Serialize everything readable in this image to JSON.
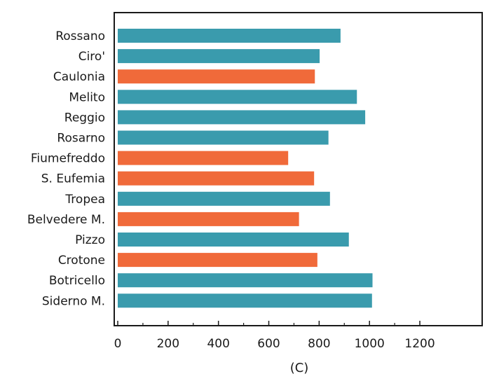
{
  "chart_data": {
    "type": "bar",
    "orientation": "horizontal",
    "categories": [
      "Rossano",
      "Ciro'",
      "Caulonia",
      "Melito",
      "Reggio",
      "Rosarno",
      "Fiumefreddo",
      "S. Eufemia",
      "Tropea",
      "Belvedere M.",
      "Pizzo",
      "Crotone",
      "Botricello",
      "Siderno M."
    ],
    "values": [
      885,
      802,
      783,
      950,
      983,
      837,
      677,
      780,
      843,
      720,
      918,
      793,
      1012,
      1010
    ],
    "bar_colors": [
      "#3a9bad",
      "#3a9bad",
      "#f06a3a",
      "#3a9bad",
      "#3a9bad",
      "#3a9bad",
      "#f06a3a",
      "#f06a3a",
      "#3a9bad",
      "#f06a3a",
      "#3a9bad",
      "#f06a3a",
      "#3a9bad",
      "#3a9bad"
    ],
    "xlim": [
      0,
      1200
    ],
    "xticks": [
      0,
      200,
      400,
      600,
      800,
      1000,
      1200
    ],
    "title": "",
    "xlabel": "",
    "ylabel": "",
    "caption": "(C)",
    "grid": false,
    "legend": "none"
  }
}
